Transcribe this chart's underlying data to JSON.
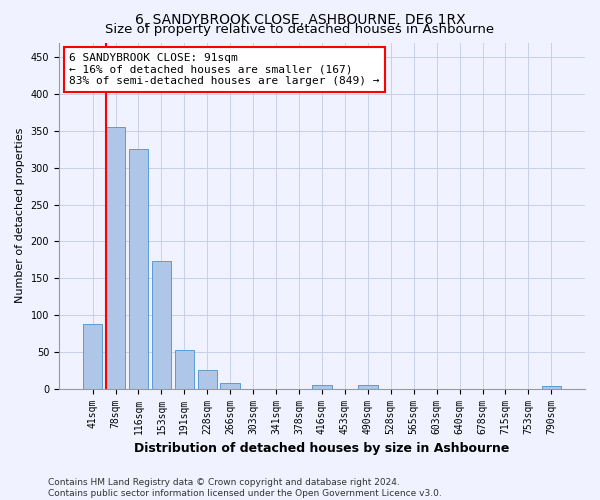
{
  "title": "6, SANDYBROOK CLOSE, ASHBOURNE, DE6 1RX",
  "subtitle": "Size of property relative to detached houses in Ashbourne",
  "xlabel": "Distribution of detached houses by size in Ashbourne",
  "ylabel": "Number of detached properties",
  "categories": [
    "41sqm",
    "78sqm",
    "116sqm",
    "153sqm",
    "191sqm",
    "228sqm",
    "266sqm",
    "303sqm",
    "341sqm",
    "378sqm",
    "416sqm",
    "453sqm",
    "490sqm",
    "528sqm",
    "565sqm",
    "603sqm",
    "640sqm",
    "678sqm",
    "715sqm",
    "753sqm",
    "790sqm"
  ],
  "values": [
    88,
    355,
    325,
    174,
    53,
    25,
    8,
    0,
    0,
    0,
    5,
    0,
    5,
    0,
    0,
    0,
    0,
    0,
    0,
    0,
    4
  ],
  "bar_color": "#aec6e8",
  "bar_edge_color": "#5b9bd5",
  "grid_color": "#c8d0e8",
  "vline_color": "red",
  "vline_pos": 0.6,
  "annotation_text": "6 SANDYBROOK CLOSE: 91sqm\n← 16% of detached houses are smaller (167)\n83% of semi-detached houses are larger (849) →",
  "annotation_box_color": "white",
  "annotation_box_edge_color": "red",
  "ylim": [
    0,
    470
  ],
  "yticks": [
    0,
    50,
    100,
    150,
    200,
    250,
    300,
    350,
    400,
    450
  ],
  "footnote": "Contains HM Land Registry data © Crown copyright and database right 2024.\nContains public sector information licensed under the Open Government Licence v3.0.",
  "background_color": "#f0f2ff",
  "title_fontsize": 10,
  "subtitle_fontsize": 9.5,
  "xlabel_fontsize": 9,
  "ylabel_fontsize": 8,
  "tick_fontsize": 7,
  "annotation_fontsize": 8,
  "footnote_fontsize": 6.5
}
